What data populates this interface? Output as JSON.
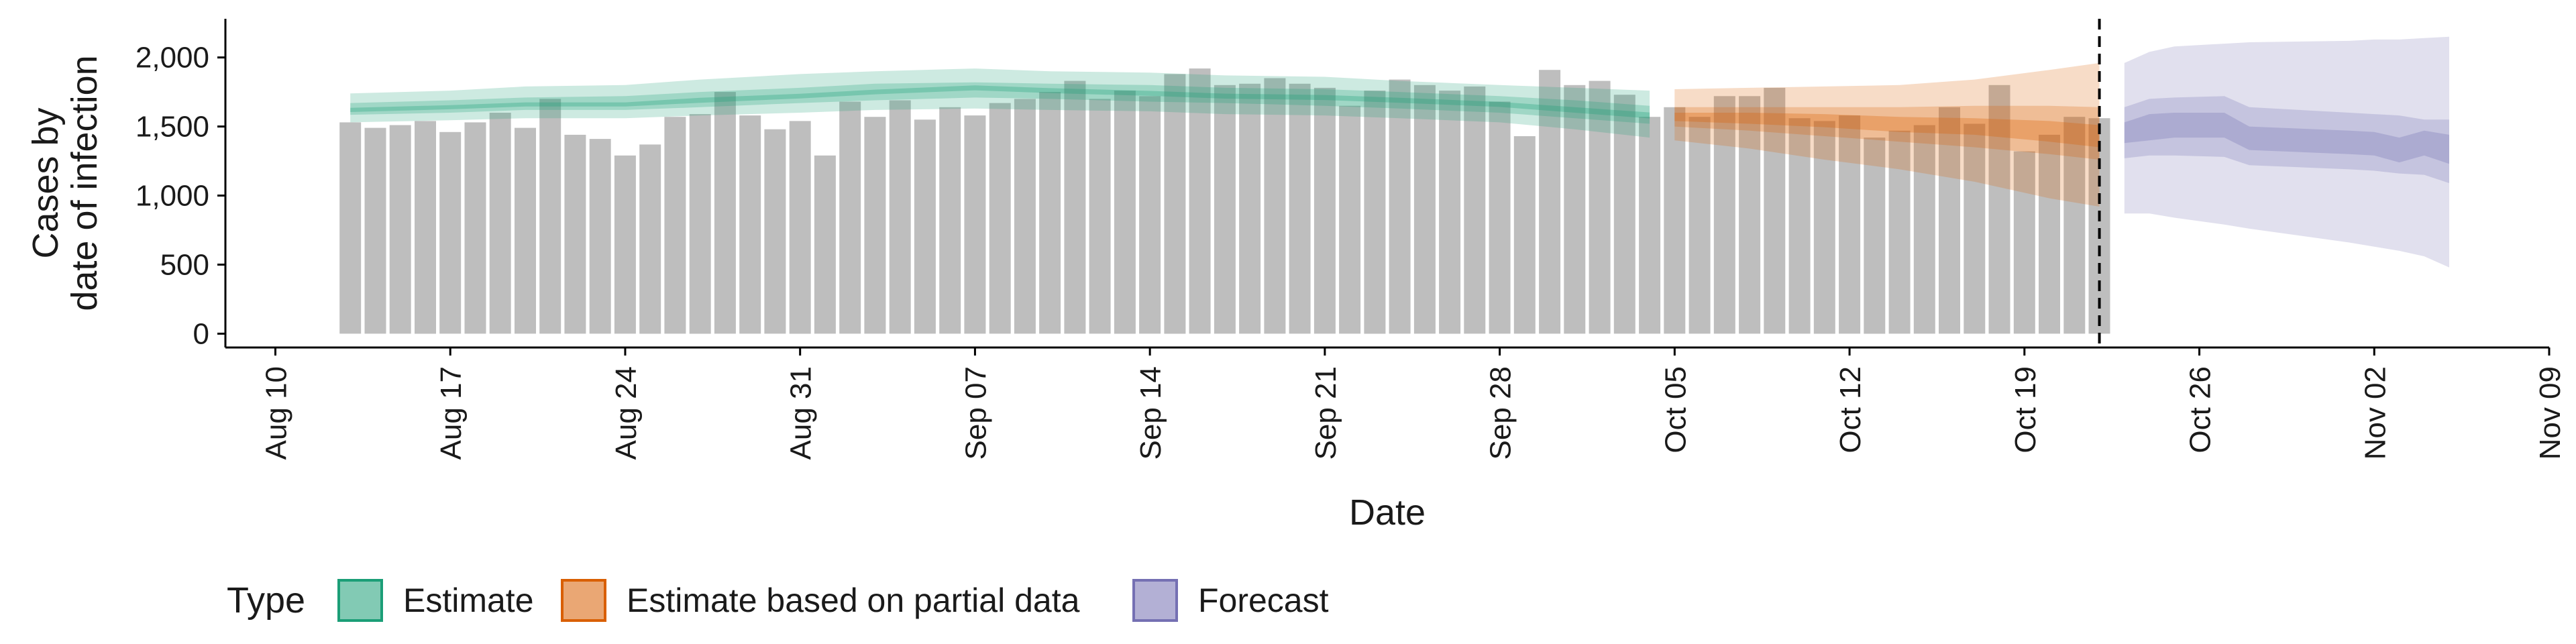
{
  "chart_data": {
    "type": "bar",
    "title": "",
    "xlabel": "Date",
    "ylabel_lines": [
      "Cases by",
      "date of infection"
    ],
    "y_ticks": [
      0,
      500,
      1000,
      1500,
      2000
    ],
    "y_tick_labels": [
      "0",
      "500",
      "1,000",
      "1,500",
      "2,000"
    ],
    "ylim": [
      -100,
      2280
    ],
    "x_ticks": [
      "2020-08-10",
      "2020-08-17",
      "2020-08-24",
      "2020-08-31",
      "2020-09-07",
      "2020-09-14",
      "2020-09-21",
      "2020-09-28",
      "2020-10-05",
      "2020-10-12",
      "2020-10-19",
      "2020-10-26",
      "2020-11-02",
      "2020-11-09"
    ],
    "x_tick_labels": [
      "Aug 10",
      "Aug 17",
      "Aug 24",
      "Aug 31",
      "Sep 07",
      "Sep 14",
      "Sep 21",
      "Sep 28",
      "Oct 05",
      "Oct 12",
      "Oct 19",
      "Oct 26",
      "Nov 02",
      "Nov 09"
    ],
    "xlim": [
      "2020-08-08",
      "2020-11-09"
    ],
    "grid": false,
    "legend_position": "bottom",
    "legend_title": "Type",
    "vline_date": "2020-10-22",
    "reported_cases": {
      "start_date": "2020-08-13",
      "values": [
        1530,
        1490,
        1510,
        1540,
        1460,
        1530,
        1600,
        1490,
        1700,
        1440,
        1410,
        1290,
        1370,
        1570,
        1590,
        1750,
        1580,
        1480,
        1540,
        1290,
        1680,
        1570,
        1690,
        1550,
        1640,
        1580,
        1670,
        1700,
        1750,
        1830,
        1700,
        1760,
        1720,
        1880,
        1920,
        1800,
        1810,
        1850,
        1810,
        1780,
        1650,
        1760,
        1840,
        1800,
        1760,
        1790,
        1680,
        1430,
        1910,
        1800,
        1830,
        1730,
        1570,
        1640,
        1570,
        1720,
        1720,
        1780,
        1560,
        1540,
        1580,
        1420,
        1470,
        1510,
        1640,
        1520,
        1800,
        1320,
        1440,
        1570,
        1560
      ],
      "color": "#bebebe"
    },
    "series": [
      {
        "name": "Estimate",
        "color": "#1b9e77",
        "dates": [
          "2020-08-13",
          "2020-08-17",
          "2020-08-20",
          "2020-08-24",
          "2020-08-27",
          "2020-08-31",
          "2020-09-03",
          "2020-09-07",
          "2020-09-10",
          "2020-09-14",
          "2020-09-17",
          "2020-09-21",
          "2020-09-24",
          "2020-09-28",
          "2020-10-01",
          "2020-10-04"
        ],
        "median": [
          1620,
          1640,
          1660,
          1660,
          1690,
          1720,
          1750,
          1780,
          1760,
          1740,
          1720,
          1710,
          1690,
          1660,
          1620,
          1580
        ],
        "lower_90": [
          1530,
          1545,
          1560,
          1560,
          1580,
          1600,
          1620,
          1630,
          1620,
          1610,
          1590,
          1580,
          1560,
          1530,
          1480,
          1420
        ],
        "upper_90": [
          1740,
          1760,
          1790,
          1800,
          1840,
          1880,
          1900,
          1920,
          1900,
          1890,
          1870,
          1860,
          1830,
          1800,
          1780,
          1760
        ],
        "lower_50": [
          1585,
          1600,
          1620,
          1620,
          1640,
          1670,
          1690,
          1710,
          1700,
          1680,
          1670,
          1650,
          1630,
          1600,
          1560,
          1520
        ],
        "upper_50": [
          1670,
          1690,
          1710,
          1720,
          1750,
          1780,
          1810,
          1820,
          1810,
          1800,
          1780,
          1770,
          1750,
          1720,
          1690,
          1650
        ],
        "lower_20": [
          1605,
          1625,
          1645,
          1645,
          1672,
          1703,
          1733,
          1762,
          1742,
          1722,
          1702,
          1692,
          1672,
          1642,
          1600,
          1558
        ],
        "upper_20": [
          1635,
          1655,
          1675,
          1675,
          1708,
          1737,
          1767,
          1798,
          1778,
          1758,
          1738,
          1728,
          1708,
          1678,
          1640,
          1602
        ]
      },
      {
        "name": "Estimate based on partial data",
        "color": "#d95f02",
        "dates": [
          "2020-10-05",
          "2020-10-08",
          "2020-10-11",
          "2020-10-14",
          "2020-10-17",
          "2020-10-20",
          "2020-10-22"
        ],
        "median": [
          1570,
          1560,
          1540,
          1510,
          1500,
          1460,
          1430
        ],
        "lower_90": [
          1400,
          1340,
          1260,
          1190,
          1100,
          980,
          920
        ],
        "upper_90": [
          1770,
          1780,
          1790,
          1800,
          1840,
          1910,
          1960
        ],
        "lower_50": [
          1500,
          1470,
          1430,
          1390,
          1350,
          1300,
          1260
        ],
        "upper_50": [
          1640,
          1640,
          1640,
          1640,
          1650,
          1650,
          1640
        ],
        "lower_20": [
          1540,
          1520,
          1495,
          1460,
          1440,
          1390,
          1350
        ],
        "upper_20": [
          1600,
          1600,
          1590,
          1570,
          1560,
          1540,
          1510
        ]
      },
      {
        "name": "Forecast",
        "color": "#7570b3",
        "dates": [
          "2020-10-23",
          "2020-10-24",
          "2020-10-25",
          "2020-10-27",
          "2020-10-28",
          "2020-11-01",
          "2020-11-02",
          "2020-11-03",
          "2020-11-04",
          "2020-11-05"
        ],
        "median": [
          1450,
          1500,
          1520,
          1510,
          1400,
          1380,
          1370,
          1250,
          1380,
          1340
        ],
        "lower_90": [
          870,
          870,
          840,
          790,
          760,
          660,
          630,
          600,
          560,
          480
        ],
        "upper_90": [
          1960,
          2040,
          2080,
          2100,
          2110,
          2120,
          2130,
          2130,
          2140,
          2150
        ],
        "lower_50": [
          1270,
          1290,
          1290,
          1280,
          1220,
          1190,
          1180,
          1160,
          1150,
          1090
        ],
        "upper_50": [
          1640,
          1700,
          1710,
          1720,
          1640,
          1600,
          1590,
          1580,
          1550,
          1550
        ],
        "lower_20": [
          1380,
          1400,
          1420,
          1420,
          1330,
          1300,
          1290,
          1240,
          1290,
          1230
        ],
        "upper_20": [
          1530,
          1590,
          1600,
          1600,
          1500,
          1470,
          1460,
          1420,
          1470,
          1440
        ]
      }
    ]
  }
}
